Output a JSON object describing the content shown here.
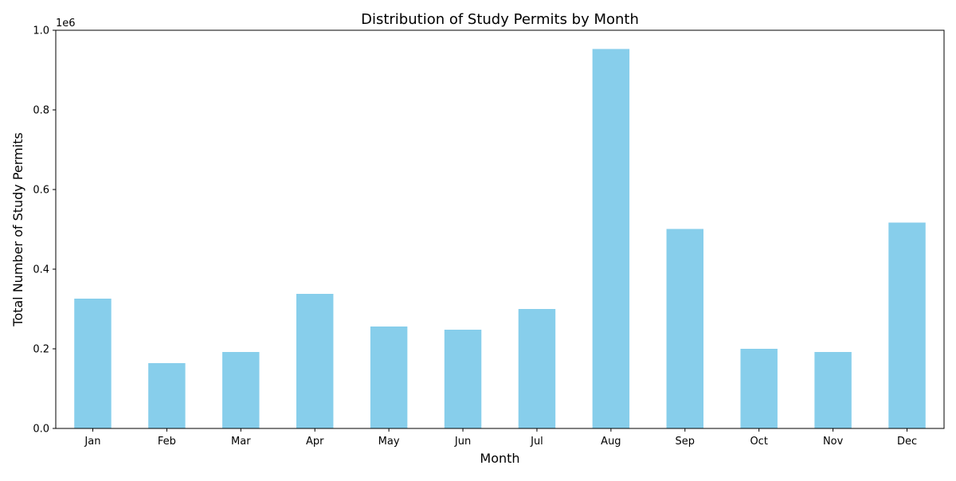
{
  "chart_data": {
    "type": "bar",
    "title": "Distribution of Study Permits by Month",
    "xlabel": "Month",
    "ylabel": "Total Number of Study Permits",
    "offset_label": "1e6",
    "categories": [
      "Jan",
      "Feb",
      "Mar",
      "Apr",
      "May",
      "Jun",
      "Jul",
      "Aug",
      "Sep",
      "Oct",
      "Nov",
      "Dec"
    ],
    "values": [
      326000,
      164000,
      192000,
      338000,
      256000,
      248000,
      300000,
      953000,
      501000,
      200000,
      192000,
      517000
    ],
    "ylim": [
      0,
      1000000
    ],
    "yticks": [
      0,
      200000,
      400000,
      600000,
      800000,
      1000000
    ],
    "ytick_labels": [
      "0.0",
      "0.2",
      "0.4",
      "0.6",
      "0.8",
      "1.0"
    ],
    "bar_color": "#87CEEB",
    "grid": false,
    "legend": "none"
  }
}
